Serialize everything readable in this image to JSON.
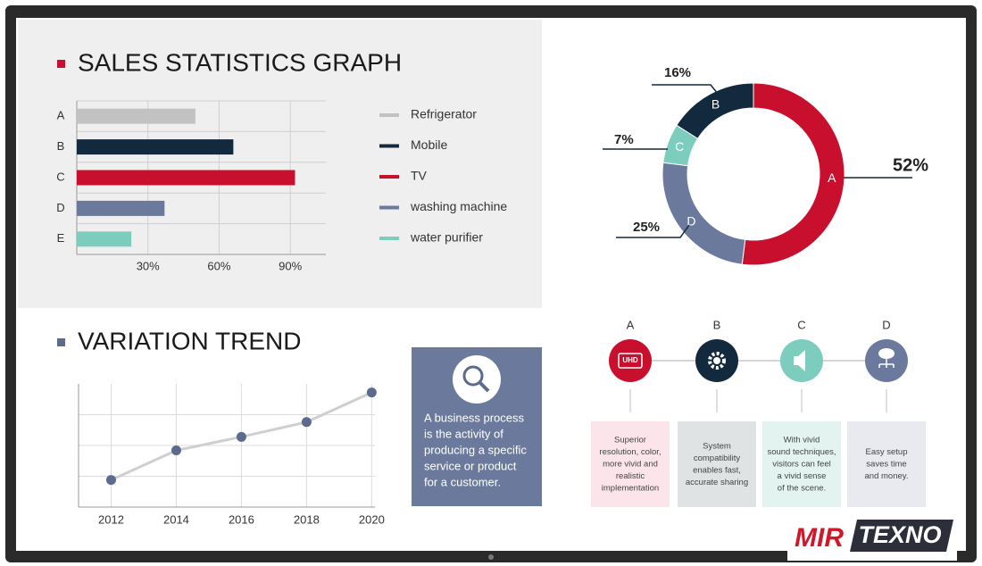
{
  "chart_data": [
    {
      "type": "bar",
      "title": "SALES STATISTICS GRAPH",
      "categories": [
        "A",
        "B",
        "C",
        "D",
        "E"
      ],
      "values": [
        50,
        66,
        92,
        37,
        23
      ],
      "colors": [
        "#c2c2c2",
        "#13293d",
        "#c8102e",
        "#6b7a9c",
        "#7ccdbd"
      ],
      "legend": [
        "Refrigerator",
        "Mobile",
        "TV",
        "washing machine",
        "water purifier"
      ],
      "xlim": [
        0,
        105
      ],
      "xticks": [
        {
          "value": 30,
          "label": "30%"
        },
        {
          "value": 60,
          "label": "60%"
        },
        {
          "value": 90,
          "label": "90%"
        }
      ],
      "grid": true
    },
    {
      "type": "donut",
      "categories": [
        "A",
        "B",
        "C",
        "D"
      ],
      "values": [
        52,
        16,
        7,
        25
      ],
      "value_labels": [
        "52%",
        "16%",
        "7%",
        "25%"
      ],
      "colors": [
        "#c8102e",
        "#13293d",
        "#7ccdbd",
        "#6b7a9c"
      ]
    },
    {
      "type": "line",
      "title": "VARIATION TREND",
      "x": [
        2012,
        2014,
        2016,
        2018,
        2020
      ],
      "values": [
        22,
        46,
        57,
        69,
        93
      ],
      "color": "#cfcfcf",
      "marker_color": "#5c6a8c",
      "xlim": [
        2011,
        2020.1
      ],
      "xticks": [
        2012,
        2014,
        2016,
        2018,
        2020
      ],
      "ylim": [
        0,
        100
      ],
      "yticks": [
        25,
        50,
        75
      ],
      "grid": true
    }
  ],
  "info_box": {
    "lines": [
      "A business process",
      "is the activity of",
      "producing a specific",
      "service or product",
      "for a customer."
    ]
  },
  "features": [
    {
      "letter": "A",
      "icon_text": "UHD",
      "lines": [
        "Superior",
        "resolution, color,",
        "more vivid and",
        "realistic",
        "implementation"
      ]
    },
    {
      "letter": "B",
      "lines": [
        "System",
        "compatibility",
        "enables fast,",
        "accurate sharing"
      ]
    },
    {
      "letter": "C",
      "lines": [
        "With vivid",
        "sound techniques,",
        "visitors can feel",
        "a vivid sense",
        "of the scene."
      ]
    },
    {
      "letter": "D",
      "lines": [
        "Easy setup",
        "saves time",
        "and money."
      ]
    }
  ],
  "watermark": {
    "red": "MIR",
    "dark": "TEXNO"
  }
}
